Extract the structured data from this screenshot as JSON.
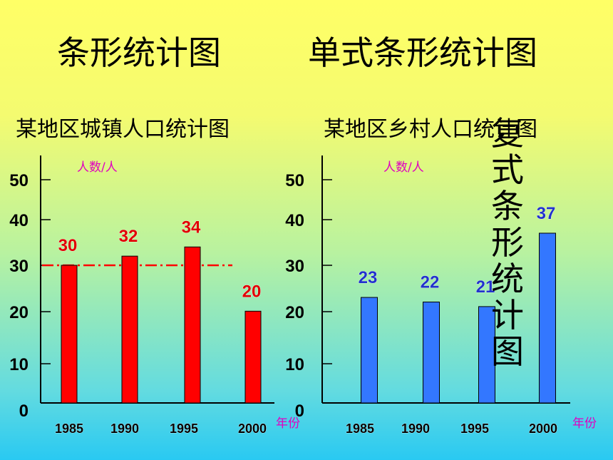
{
  "headings": {
    "left": "条形统计图",
    "right": "单式条形统计图",
    "vertical": "复式条形统计图"
  },
  "chart_data": [
    {
      "type": "bar",
      "title": "某地区城镇人口统计图",
      "ylabel": "人数/人",
      "xlabel": "年份",
      "categories": [
        "1985",
        "1990",
        "1995",
        "2000"
      ],
      "values": [
        30,
        32,
        34,
        20
      ],
      "data_labels": [
        "30",
        "32",
        "34",
        "20"
      ],
      "yticks": [
        0,
        10,
        20,
        30,
        40,
        50
      ],
      "ylim": [
        0,
        55
      ],
      "bar_color": "#ff0000",
      "label_color": "#e00000",
      "reference_line": 30,
      "reference_line_color": "#ff0000",
      "grid": false
    },
    {
      "type": "bar",
      "title": "某地区乡村人口统计图",
      "ylabel": "人数/人",
      "xlabel": "年份",
      "categories": [
        "1985",
        "1990",
        "1995",
        "2000"
      ],
      "values": [
        23,
        22,
        21,
        37
      ],
      "data_labels": [
        "23",
        "22",
        "21",
        "37"
      ],
      "yticks": [
        0,
        10,
        20,
        30,
        40,
        50
      ],
      "ylim": [
        0,
        55
      ],
      "bar_color": "#3377ff",
      "label_color": "#2233cc",
      "grid": false
    }
  ]
}
